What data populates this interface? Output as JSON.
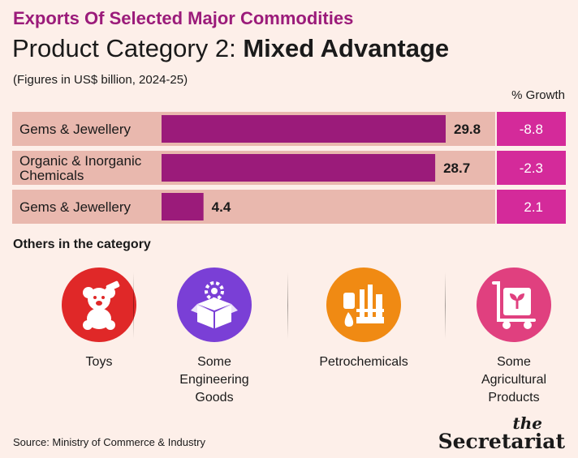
{
  "header": {
    "kicker": "Exports Of Selected Major Commodities",
    "title_prefix": "Product Category 2:",
    "title_bold": "Mixed Advantage",
    "subtitle": "(Figures in US$ billion, 2024-25)",
    "growth_label": "% Growth"
  },
  "chart_data": {
    "type": "bar",
    "orientation": "horizontal",
    "categories": [
      "Gems & Jewellery",
      "Organic & Inorganic Chemicals",
      "Gems & Jewellery"
    ],
    "values": [
      29.8,
      28.7,
      4.4
    ],
    "growth": [
      -8.8,
      -2.3,
      2.1
    ],
    "growth_labels": [
      "-8.8",
      "-2.3",
      "2.1"
    ],
    "value_labels": [
      "29.8",
      "28.7",
      "4.4"
    ],
    "xlim": [
      0,
      29.8
    ],
    "colors": {
      "bar": "#9b1b7a",
      "row_bg": "#e9b8ae",
      "growth_bg": "#d42a9a",
      "growth_text": "#ffffff"
    }
  },
  "others": {
    "heading": "Others in the category",
    "items": [
      {
        "label": "Toys",
        "icon": "teddy-bear-icon",
        "color": "#e02828"
      },
      {
        "label": "Some\nEngineering\nGoods",
        "icon": "gear-box-icon",
        "color": "#7a3fd6"
      },
      {
        "label": "Petrochemicals",
        "icon": "refinery-icon",
        "color": "#f08a13"
      },
      {
        "label": "Some\nAgricultural\nProducts",
        "icon": "plant-cart-icon",
        "color": "#e0407f"
      }
    ]
  },
  "footer": {
    "source": "Source: Ministry of Commerce & Industry",
    "brand_the": "the",
    "brand_name": "Secretariat"
  }
}
